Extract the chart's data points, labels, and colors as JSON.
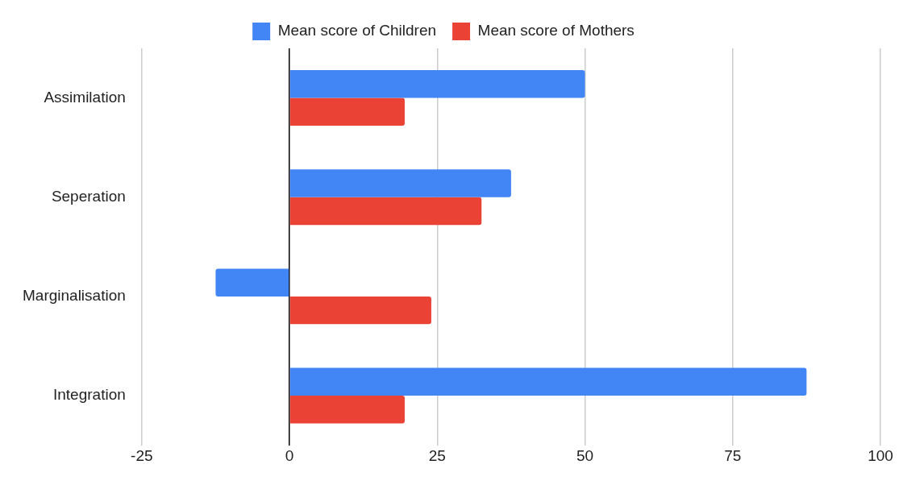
{
  "chart_data": {
    "type": "bar",
    "orientation": "horizontal",
    "categories": [
      "Assimilation",
      "Seperation",
      "Marginalisation",
      "Integration"
    ],
    "series": [
      {
        "name": "Mean score of Children",
        "color": "#4285f4",
        "values": [
          50,
          37.5,
          -12.5,
          87.5
        ]
      },
      {
        "name": "Mean score of Mothers",
        "color": "#ea4335",
        "values": [
          19.5,
          32.5,
          24,
          19.5
        ]
      }
    ],
    "xlim": [
      -25,
      100
    ],
    "xticks": [
      -25,
      0,
      25,
      50,
      75,
      100
    ],
    "grid": "x",
    "legend": "top"
  }
}
